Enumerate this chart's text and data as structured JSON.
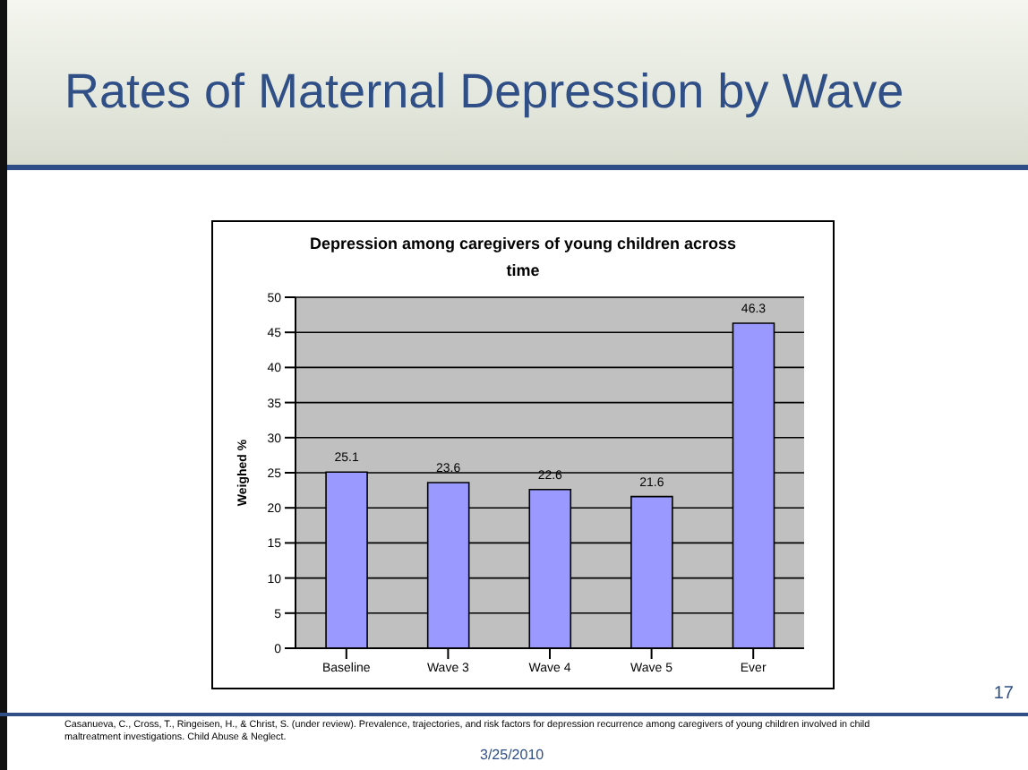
{
  "chart_data": {
    "type": "bar",
    "title": "Rates of Maternal Depression by Wave",
    "subtitle": "Depression among caregivers of young children across time",
    "ylabel": "Weighed %",
    "categories": [
      "Baseline",
      "Wave 3",
      "Wave 4",
      "Wave 5",
      "Ever"
    ],
    "values": [
      25.1,
      23.6,
      22.6,
      21.6,
      46.3
    ],
    "color": "#9999ff",
    "ylim": [
      0,
      50
    ],
    "yticks": [
      0,
      5,
      10,
      15,
      20,
      25,
      30,
      35,
      40,
      45,
      50
    ],
    "grid": "y",
    "data_labels": true,
    "annotations": [
      "Casanueva, C., Cross, T., Ringeisen, H., & Christ, S. (under review). Prevalence, trajectories, and risk factors for depression recurrence among caregivers of young children involved in child maltreatment investigations. Child Abuse & Neglect.",
      "3/25/2010",
      "17"
    ]
  }
}
